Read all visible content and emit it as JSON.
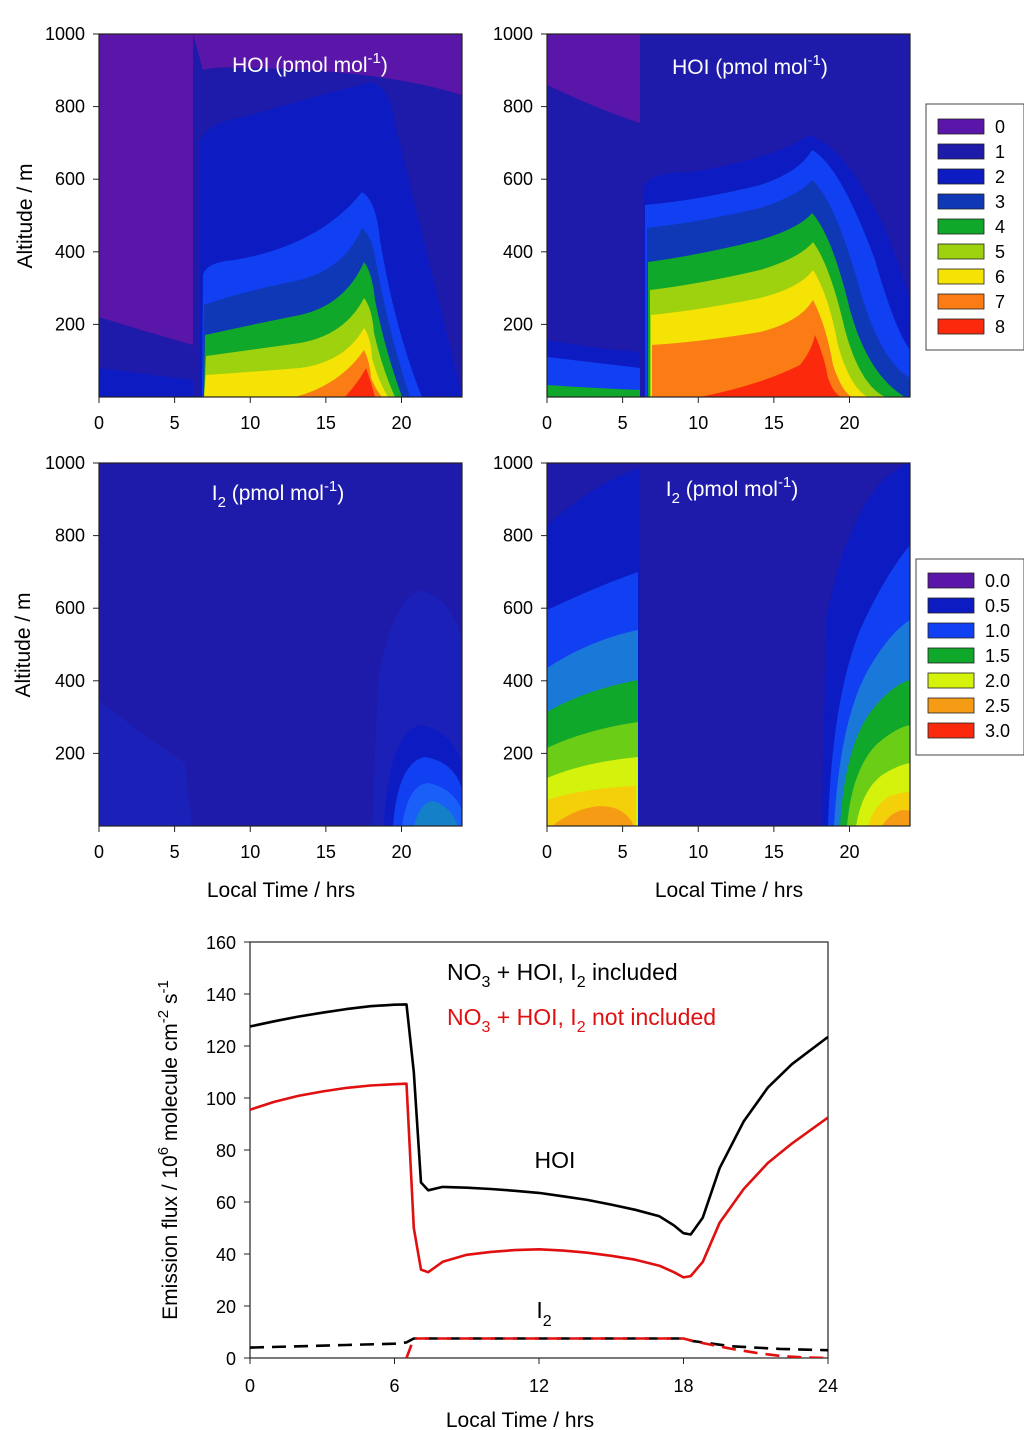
{
  "chart_data": [
    {
      "type": "heatmap",
      "panel": "top-left",
      "title": "HOI (pmol mol-1)",
      "title_parts": {
        "base": "HOI (pmol mol",
        "sup": "-1",
        "close": ")"
      },
      "xlabel": "",
      "ylabel": "Altitude / m",
      "xlim": [
        0,
        24
      ],
      "ylim": [
        0,
        1000
      ],
      "x_ticks": [
        "0",
        "5",
        "10",
        "15",
        "20"
      ],
      "y_ticks": [
        "200",
        "400",
        "600",
        "800",
        "1000"
      ],
      "levels": [
        0,
        1,
        2,
        3,
        4,
        5,
        6,
        7,
        8
      ],
      "background_level": 1,
      "regions": [
        {
          "level": 0,
          "shape": "nighttime upper layer",
          "x_range": [
            0,
            6.5
          ],
          "y_range": [
            140,
            1000
          ]
        },
        {
          "level": 0,
          "shape": "top band",
          "x_range": [
            6.5,
            24
          ],
          "y_range": [
            900,
            1000
          ]
        },
        {
          "level": 2,
          "shape": "daytime plume",
          "x_range": [
            6.7,
            20.5
          ],
          "top_altitude_start": 360,
          "top_altitude_peak": 570,
          "peak_x": 17.6
        },
        {
          "level": 8,
          "shape": "surface maximum",
          "peak_x": 17.5
        }
      ]
    },
    {
      "type": "heatmap",
      "panel": "top-right",
      "title": "HOI (pmol mol-1)",
      "title_parts": {
        "base": "HOI (pmol mol",
        "sup": "-1",
        "close": ")"
      },
      "xlabel": "",
      "ylabel": "",
      "xlim": [
        0,
        24
      ],
      "ylim": [
        0,
        1000
      ],
      "x_ticks": [
        "0",
        "5",
        "10",
        "15",
        "20"
      ],
      "y_ticks": [
        "200",
        "400",
        "600",
        "800",
        "1000"
      ],
      "levels": [
        0,
        1,
        2,
        3,
        4,
        5,
        6,
        7,
        8
      ],
      "background_level": 1,
      "regions": [
        {
          "level": 0,
          "shape": "top-left corner",
          "x_range": [
            0,
            6
          ],
          "y_range": [
            750,
            1000
          ]
        },
        {
          "level": 2,
          "shape": "daytime plume",
          "x_range": [
            6.1,
            24
          ],
          "top_altitude_start": 620,
          "top_altitude_peak": 720,
          "peak_x": 17.5
        },
        {
          "level": 8,
          "shape": "surface maximum",
          "peak_x": 17.3
        }
      ]
    },
    {
      "type": "heatmap",
      "panel": "middle-left",
      "title": "I2 (pmol mol-1)",
      "title_parts": {
        "base": "I",
        "sub": "2",
        "mid": " (pmol mol",
        "sup": "-1",
        "close": ")"
      },
      "xlabel": "Local Time / hrs",
      "ylabel": "Altitude / m",
      "xlim": [
        0,
        24
      ],
      "ylim": [
        0,
        1000
      ],
      "x_ticks": [
        "0",
        "5",
        "10",
        "15",
        "20"
      ],
      "y_ticks": [
        "200",
        "400",
        "600",
        "800",
        "1000"
      ],
      "levels": [
        0.0,
        0.5,
        1.0,
        1.5,
        2.0,
        2.5,
        3.0
      ],
      "background_level": 0.0,
      "regions": [
        {
          "level": 0.5,
          "shape": "nighttime surface layer",
          "x_range": [
            0,
            6
          ],
          "y_range": [
            0,
            350
          ]
        },
        {
          "level": 0.5,
          "shape": "evening plume",
          "x_range": [
            18,
            24
          ],
          "y_range": [
            0,
            650
          ]
        },
        {
          "level": 1.0,
          "shape": "evening core",
          "x_range": [
            19.5,
            24
          ],
          "y_range": [
            0,
            270
          ]
        }
      ]
    },
    {
      "type": "heatmap",
      "panel": "middle-right",
      "title": "I2 (pmol mol-1)",
      "title_parts": {
        "base": "I",
        "sub": "2",
        "mid": " (pmol mol",
        "sup": "-1",
        "close": ")"
      },
      "xlabel": "Local Time / hrs",
      "ylabel": "",
      "xlim": [
        0,
        24
      ],
      "ylim": [
        0,
        1000
      ],
      "x_ticks": [
        "0",
        "5",
        "10",
        "15",
        "20"
      ],
      "y_ticks": [
        "200",
        "400",
        "600",
        "800",
        "1000"
      ],
      "levels": [
        0.0,
        0.5,
        1.0,
        1.5,
        2.0,
        2.5,
        3.0
      ],
      "background_level": 0.5,
      "regions": [
        {
          "level": 1.0,
          "shape": "early morning plume",
          "x_range": [
            0,
            6.1
          ],
          "y_range": [
            0,
            700
          ]
        },
        {
          "level": 2.5,
          "shape": "early morning surface",
          "x_range": [
            0,
            6
          ],
          "y_range": [
            0,
            100
          ]
        },
        {
          "level": 1.0,
          "shape": "evening plume",
          "x_range": [
            18.3,
            24
          ],
          "y_range": [
            0,
            780
          ]
        },
        {
          "level": 2.5,
          "shape": "evening surface",
          "x_range": [
            22,
            24
          ],
          "y_range": [
            0,
            150
          ]
        }
      ]
    }
  ],
  "legend_hoi": {
    "entries": [
      {
        "label": "0",
        "color": "#5a16a8"
      },
      {
        "label": "1",
        "color": "#1e1aaa"
      },
      {
        "label": "2",
        "color": "#0c1bc2"
      },
      {
        "label": "3",
        "color": "#0f38b6"
      },
      {
        "label": "4",
        "color": "#10a82a"
      },
      {
        "label": "5",
        "color": "#9ed10e"
      },
      {
        "label": "6",
        "color": "#f4e304"
      },
      {
        "label": "7",
        "color": "#fb7b14"
      },
      {
        "label": "8",
        "color": "#fb2a0c"
      }
    ]
  },
  "legend_i2": {
    "entries": [
      {
        "label": "0.0",
        "color": "#5a16a8"
      },
      {
        "label": "0.5",
        "color": "#0c1bc2"
      },
      {
        "label": "1.0",
        "color": "#1140f2"
      },
      {
        "label": "1.5",
        "color": "#10a82a"
      },
      {
        "label": "2.0",
        "color": "#d4f20c"
      },
      {
        "label": "2.5",
        "color": "#f59c14"
      },
      {
        "label": "3.0",
        "color": "#fb2a0c"
      }
    ]
  },
  "flux_chart": {
    "type": "line",
    "xlabel": "Local Time / hrs",
    "ylabel": "Emission flux / 10^6 molecule cm-2 s-1",
    "ylabel_parts": {
      "a": "Emission flux / 10",
      "sup1": "6",
      "b": " molecule cm",
      "sup2": "-2",
      "c": " s",
      "sup3": "-1"
    },
    "xlim": [
      0,
      24
    ],
    "ylim": [
      0,
      160
    ],
    "x_ticks": [
      "0",
      "6",
      "12",
      "18",
      "24"
    ],
    "y_ticks": [
      "0",
      "20",
      "40",
      "60",
      "80",
      "100",
      "120",
      "140",
      "160"
    ],
    "legend": [
      {
        "text": "NO3 + HOI, I2 included",
        "parts": {
          "a": "NO",
          "sub1": "3",
          "b": " + HOI, I",
          "sub2": "2",
          "c": " included"
        },
        "color": "#000000"
      },
      {
        "text": "NO3 + HOI, I2 not included",
        "parts": {
          "a": "NO",
          "sub1": "3",
          "b": " + HOI, I",
          "sub2": "2",
          "c": " not included"
        },
        "color": "#e01010"
      }
    ],
    "annotations": [
      {
        "text": "HOI",
        "x": 12.5,
        "y": 76
      },
      {
        "text": "I",
        "sub": "2",
        "x": 12,
        "y": 15
      }
    ],
    "series": [
      {
        "name": "HOI, I2 included",
        "color": "#000000",
        "dash": false,
        "x": [
          0,
          1,
          2,
          3,
          4,
          5,
          6,
          6.5,
          6.8,
          7.1,
          7.4,
          8,
          9,
          10,
          11,
          12,
          13,
          14,
          15,
          16,
          17,
          17.6,
          18,
          18.3,
          18.8,
          19.5,
          20.5,
          21.5,
          22.5,
          24
        ],
        "y": [
          127.5,
          129.5,
          131.3,
          132.8,
          134.2,
          135.3,
          135.9,
          136,
          110,
          67.5,
          64.5,
          65.8,
          65.5,
          65,
          64.3,
          63.5,
          62.2,
          60.8,
          59,
          57,
          54.5,
          51,
          48,
          47.5,
          54,
          73,
          91,
          104,
          113,
          123.5
        ]
      },
      {
        "name": "HOI, I2 not included",
        "color": "#e01010",
        "dash": false,
        "x": [
          0,
          1,
          2,
          3,
          4,
          5,
          6,
          6.5,
          6.8,
          7.1,
          7.4,
          8,
          9,
          10,
          11,
          12,
          13,
          14,
          15,
          16,
          17,
          17.6,
          18,
          18.3,
          18.8,
          19.5,
          20.5,
          21.5,
          22.5,
          24
        ],
        "y": [
          95.5,
          98.5,
          100.8,
          102.5,
          103.9,
          104.8,
          105.3,
          105.5,
          50,
          34,
          33,
          37,
          39.7,
          40.8,
          41.5,
          41.8,
          41.3,
          40.5,
          39.3,
          37.8,
          35.5,
          33,
          31,
          31.5,
          37,
          52,
          65,
          75,
          82.5,
          92.5
        ]
      },
      {
        "name": "I2, I2 included",
        "color": "#000000",
        "dash": true,
        "x": [
          0,
          2,
          4,
          6,
          6.5,
          6.8,
          12,
          18,
          18.4,
          20,
          22,
          24
        ],
        "y": [
          4,
          4.5,
          5,
          5.5,
          6,
          7.5,
          7.5,
          7.5,
          6.5,
          4.5,
          3.5,
          3
        ]
      },
      {
        "name": "I2, I2 not included",
        "color": "#e01010",
        "dash": true,
        "x": [
          6.5,
          6.8,
          12,
          18,
          18.4,
          20,
          21,
          22,
          23,
          24
        ],
        "y": [
          0,
          7.5,
          7.5,
          7.5,
          6.5,
          3.5,
          2,
          0.8,
          0.2,
          0
        ]
      }
    ]
  }
}
